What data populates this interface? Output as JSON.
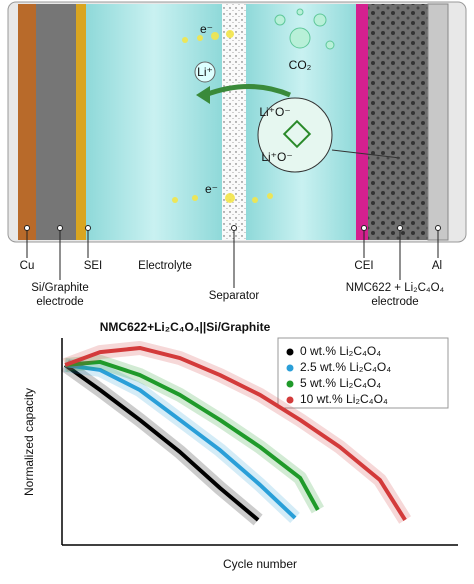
{
  "diagram": {
    "labels": {
      "cu": "Cu",
      "si_graphite": [
        "Si/Graphite",
        "electrode"
      ],
      "sei": "SEI",
      "electrolyte": "Electrolyte",
      "separator": "Separator",
      "cei": "CEI",
      "nmc": [
        "NMC622 + Li₂C₄O₄",
        "electrode"
      ],
      "al": "Al"
    },
    "species": {
      "electron_top": "e⁻",
      "electron_bottom": "e⁻",
      "lithium": "Li⁺",
      "co2": "CO₂",
      "mol_top": "Li⁺O⁻",
      "mol_bottom": "Li⁺O⁻"
    }
  },
  "chart_data": {
    "type": "line",
    "title": "NMC622+Li₂C₄O₄||Si/Graphite",
    "x_label": "Cycle number",
    "y_label": "Normalized capacity",
    "xlim": [
      0,
      1
    ],
    "ylim": [
      0,
      1
    ],
    "legend": "upper right",
    "series": [
      {
        "name": "0 wt.% Li₂C₄O₄",
        "color": "#000000",
        "x": [
          0.008,
          0.097,
          0.198,
          0.3,
          0.402,
          0.499
        ],
        "values": [
          0.878,
          0.756,
          0.61,
          0.454,
          0.278,
          0.122
        ]
      },
      {
        "name": "2.5 wt.% Li₂C₄O₄",
        "color": "#2a9fd8",
        "x": [
          0.008,
          0.097,
          0.198,
          0.3,
          0.402,
          0.504,
          0.593
        ],
        "values": [
          0.878,
          0.854,
          0.756,
          0.61,
          0.463,
          0.293,
          0.132
        ]
      },
      {
        "name": "5 wt.% Li₂C₄O₄",
        "color": "#1f9a2a",
        "x": [
          0.008,
          0.097,
          0.198,
          0.3,
          0.402,
          0.504,
          0.606,
          0.651
        ],
        "values": [
          0.878,
          0.893,
          0.829,
          0.732,
          0.61,
          0.478,
          0.327,
          0.171
        ]
      },
      {
        "name": "10 wt.% Li₂C₄O₄",
        "color": "#d33a3a",
        "x": [
          0.008,
          0.097,
          0.198,
          0.3,
          0.402,
          0.504,
          0.606,
          0.707,
          0.809,
          0.873
        ],
        "values": [
          0.878,
          0.941,
          0.961,
          0.912,
          0.829,
          0.732,
          0.61,
          0.478,
          0.317,
          0.122
        ]
      }
    ]
  }
}
